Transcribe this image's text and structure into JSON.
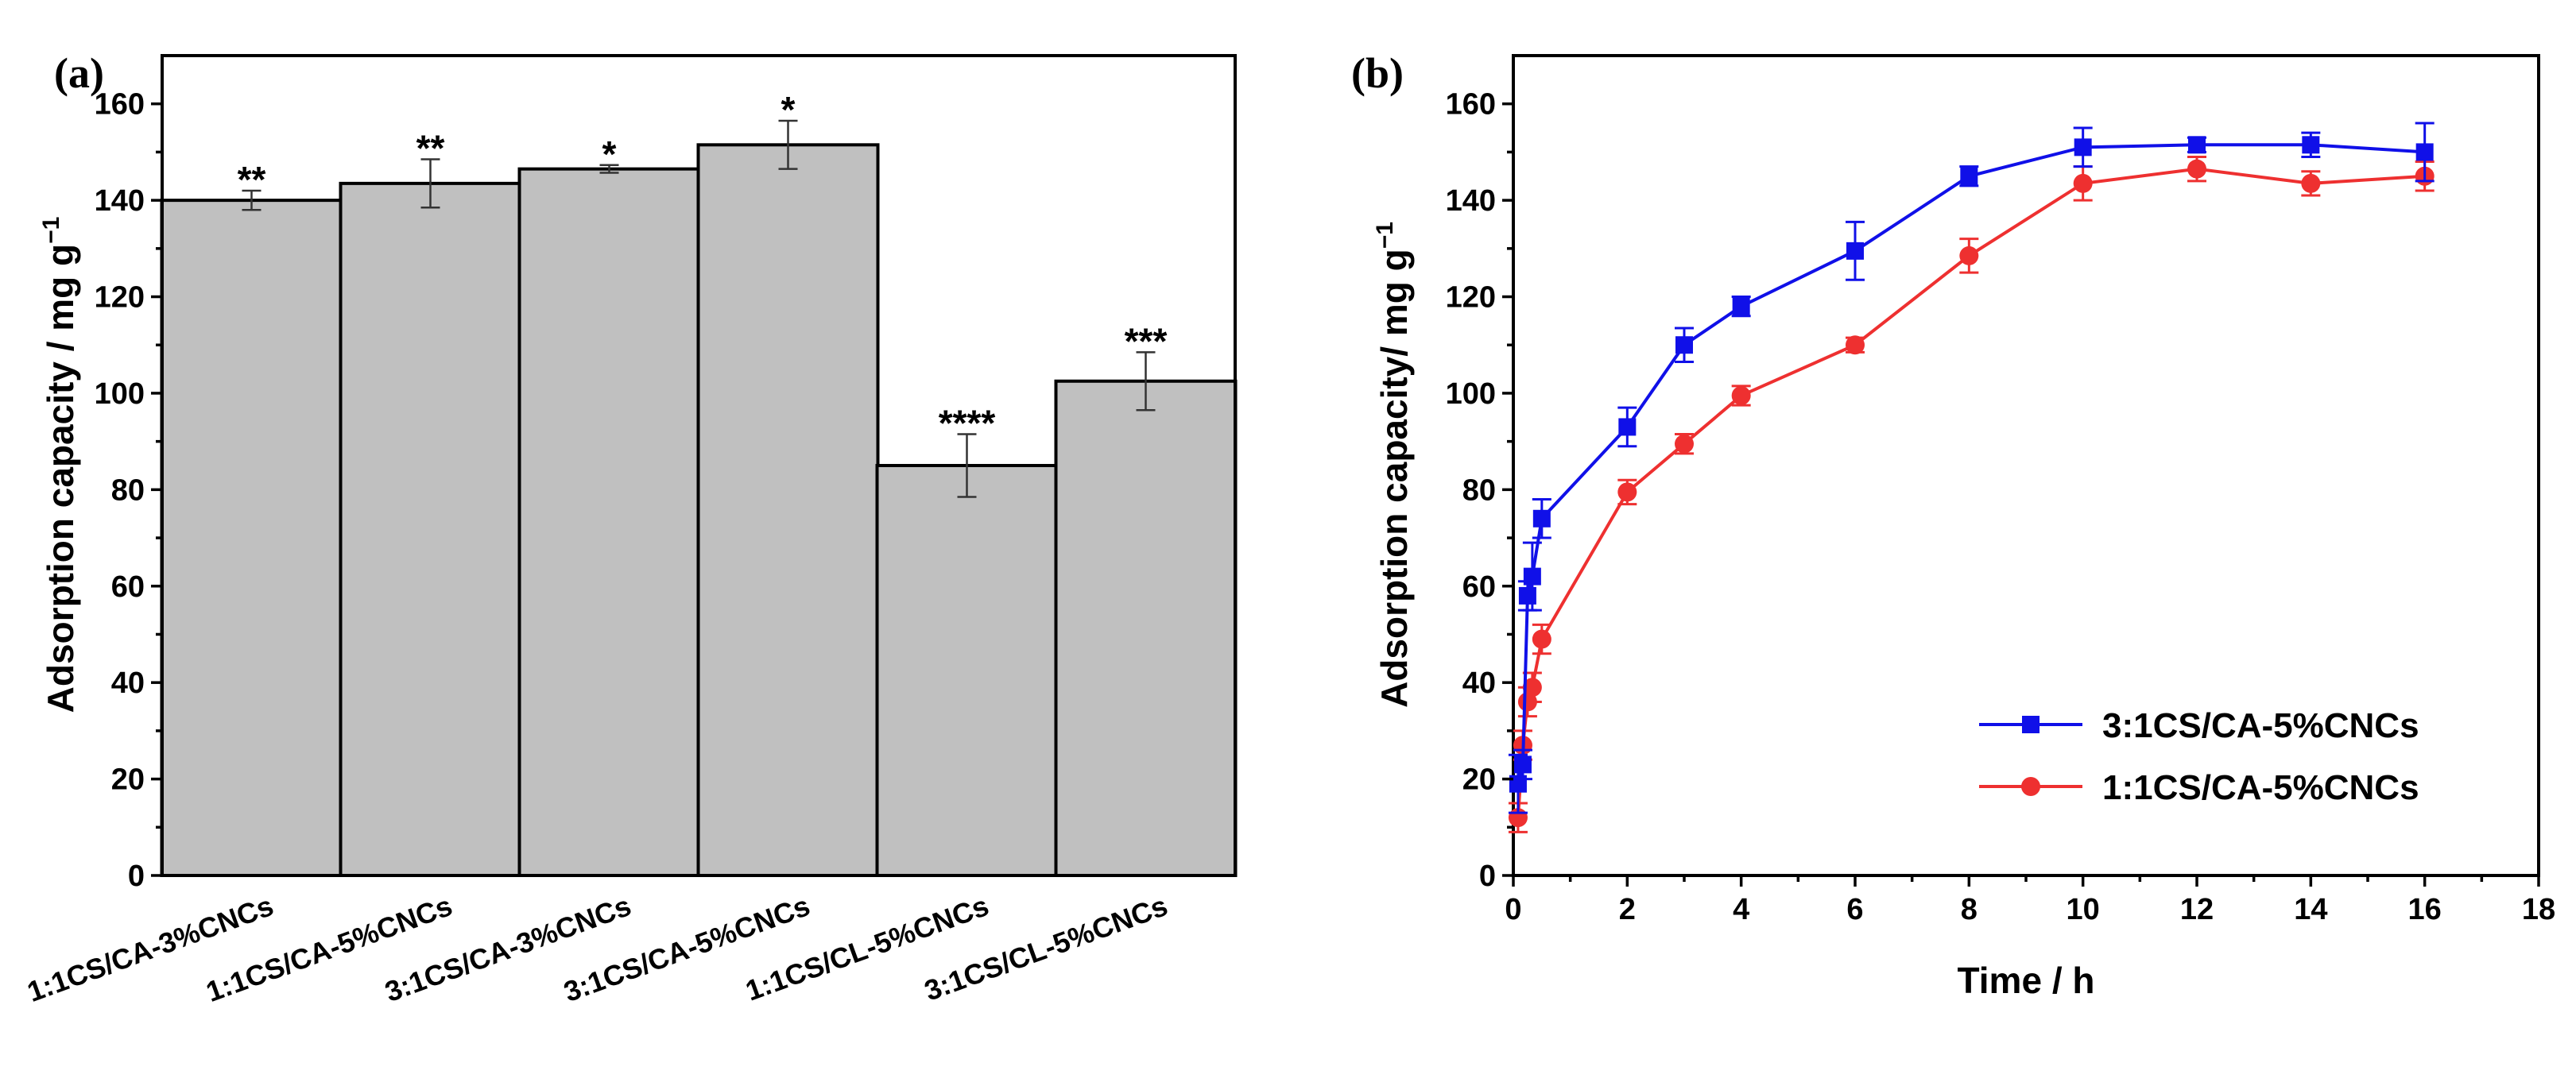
{
  "chart_data": [
    {
      "type": "bar",
      "panel_label": "(a)",
      "title": "",
      "xlabel": "",
      "ylabel": "Adsorption capacity / mg g",
      "ylabel_superscript": "−1",
      "ylim": [
        0,
        170
      ],
      "yticks": [
        0,
        20,
        40,
        60,
        80,
        100,
        120,
        140,
        160
      ],
      "categories": [
        "1:1CS/CA-3%CNCs",
        "1:1CS/CA-5%CNCs",
        "3:1CS/CA-3%CNCs",
        "3:1CS/CA-5%CNCs",
        "1:1CS/CL-5%CNCs",
        "3:1CS/CL-5%CNCs"
      ],
      "values": [
        140,
        143.5,
        146.5,
        151.5,
        85,
        102.5
      ],
      "errors": [
        2,
        5,
        0.8,
        5,
        6.5,
        6
      ],
      "significance": [
        "**",
        "**",
        "*",
        "*",
        "****",
        "***"
      ],
      "bar_color": "#c0c0c0"
    },
    {
      "type": "line",
      "panel_label": "(b)",
      "title": "",
      "xlabel": "Time / h",
      "ylabel": "Adsorption capacity/ mg g",
      "ylabel_superscript": "−1",
      "xlim": [
        0,
        18
      ],
      "ylim": [
        0,
        170
      ],
      "xticks": [
        0,
        2,
        4,
        6,
        8,
        10,
        12,
        14,
        16,
        18
      ],
      "yticks": [
        0,
        20,
        40,
        60,
        80,
        100,
        120,
        140,
        160
      ],
      "legend_position": "lower-right",
      "series": [
        {
          "name": "3:1CS/CA-5%CNCs",
          "color": "#1010e8",
          "marker": "square",
          "x": [
            0.083,
            0.167,
            0.25,
            0.333,
            0.5,
            2,
            3,
            4,
            6,
            8,
            10,
            12,
            14,
            16
          ],
          "y": [
            19,
            23,
            58,
            62,
            74,
            93,
            110,
            118,
            129.5,
            145,
            151,
            151.5,
            151.5,
            150
          ],
          "errors": [
            6,
            3,
            3,
            7,
            4,
            4,
            3.5,
            2,
            6,
            2,
            4,
            1.5,
            2.5,
            6
          ]
        },
        {
          "name": "1:1CS/CA-5%CNCs",
          "color": "#ee3030",
          "marker": "circle",
          "x": [
            0.083,
            0.167,
            0.25,
            0.333,
            0.5,
            2,
            3,
            4,
            6,
            8,
            10,
            12,
            14,
            16
          ],
          "y": [
            12,
            27,
            36,
            39,
            49,
            79.5,
            89.5,
            99.5,
            110,
            128.5,
            143.5,
            146.5,
            143.5,
            145
          ],
          "errors": [
            3,
            3,
            3,
            3,
            3,
            2.5,
            2,
            2,
            1.5,
            3.5,
            3.5,
            2.5,
            2.5,
            3
          ]
        }
      ]
    }
  ]
}
